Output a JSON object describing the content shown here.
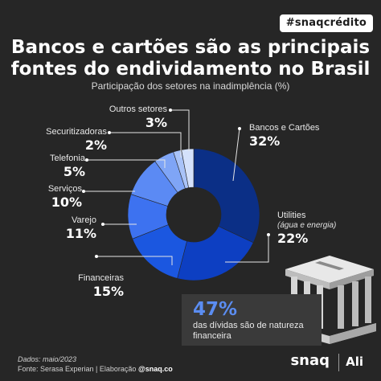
{
  "badge": "#snaqcrédito",
  "title_line1": "Bancos e cartões são as principais",
  "title_line2": "fontes do endividamento no Brasil",
  "subtitle": "Participação dos setores na inadimplência (%)",
  "chart_data": {
    "type": "pie",
    "style": "donut",
    "title": "Bancos e cartões são as principais fontes do endividamento no Brasil",
    "subtitle": "Participação dos setores na inadimplência (%)",
    "unit": "%",
    "slices": [
      {
        "label": "Bancos e Cartões",
        "value": 32,
        "display": "32%",
        "color": "#0b2f86"
      },
      {
        "label": "Utilities",
        "note": "(água e energia)",
        "value": 22,
        "display": "22%",
        "color": "#0d3fc2"
      },
      {
        "label": "Financeiras",
        "value": 15,
        "display": "15%",
        "color": "#1b57e0"
      },
      {
        "label": "Varejo",
        "value": 11,
        "display": "11%",
        "color": "#3d72f0"
      },
      {
        "label": "Serviços",
        "value": 10,
        "display": "10%",
        "color": "#5b8af4"
      },
      {
        "label": "Telefonia",
        "value": 5,
        "display": "5%",
        "color": "#7fa5f6"
      },
      {
        "label": "Securitizadoras",
        "value": 2,
        "display": "2%",
        "color": "#a9c3f8"
      },
      {
        "label": "Outros setores",
        "value": 3,
        "display": "3%",
        "color": "#d4e1fb"
      }
    ]
  },
  "callout": {
    "value": "47%",
    "text": "das dívidas são de natureza financeira"
  },
  "footer": {
    "date": "Dados: maio/2023",
    "source": "Fonte: Serasa Experian | Elaboração ",
    "handle": "@snaq.co"
  },
  "brand": {
    "snaq": "snaq",
    "ali": "Ali"
  }
}
